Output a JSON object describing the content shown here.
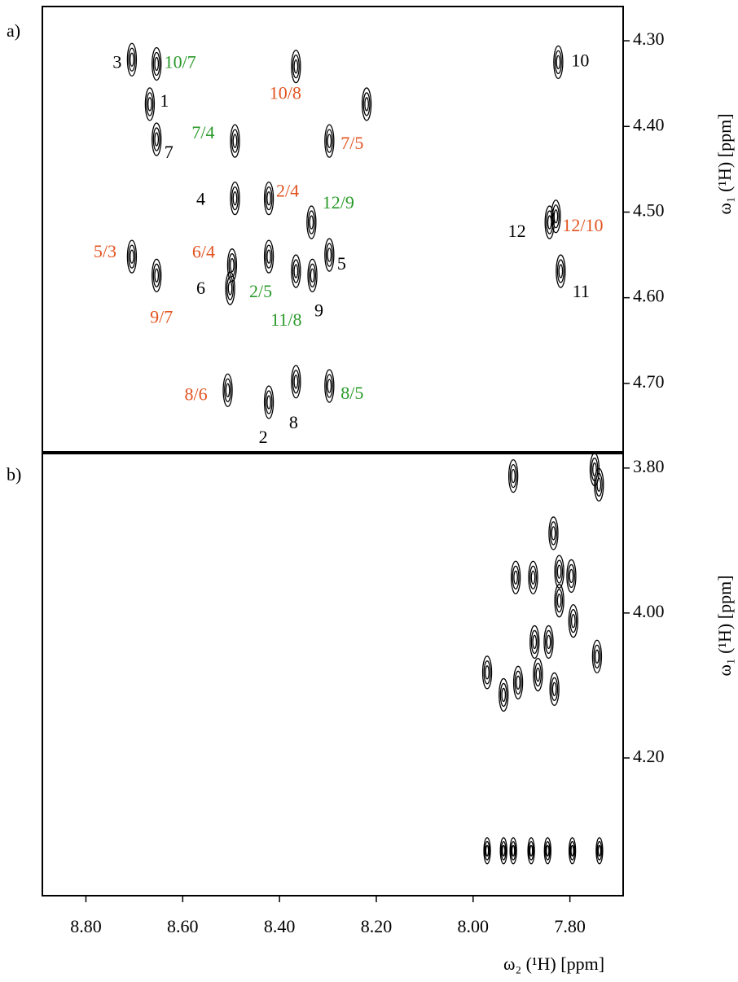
{
  "chart_data": [
    {
      "type": "scatter",
      "panel_label": "a)",
      "color": "#000000",
      "xlim": [
        8.89,
        7.69
      ],
      "ylim": [
        4.26,
        4.78
      ],
      "yticks": [
        {
          "value": 4.3,
          "label": "4.30"
        },
        {
          "value": 4.4,
          "label": "4.40"
        },
        {
          "value": 4.5,
          "label": "4.50"
        },
        {
          "value": 4.6,
          "label": "4.60"
        },
        {
          "value": 4.7,
          "label": "4.70"
        }
      ],
      "y_label": "ω₁ (¹H) [ppm]",
      "x": [
        8.705,
        8.654,
        8.668,
        8.654,
        8.492,
        8.366,
        8.297,
        8.22,
        8.492,
        8.422,
        8.334,
        8.705,
        8.654,
        8.498,
        8.502,
        8.422,
        8.366,
        8.332,
        8.297,
        7.824,
        7.842,
        7.819,
        7.829,
        8.507,
        8.422,
        8.366,
        8.297
      ],
      "y": [
        4.322,
        4.327,
        4.374,
        4.415,
        4.417,
        4.33,
        4.417,
        4.374,
        4.484,
        4.484,
        4.512,
        4.552,
        4.574,
        4.562,
        4.589,
        4.552,
        4.569,
        4.574,
        4.55,
        4.325,
        4.512,
        4.569,
        4.505,
        4.708,
        4.722,
        4.698,
        4.703
      ],
      "labels": [
        "3",
        "10/7",
        "1",
        "7",
        "7/4",
        "10/8",
        "7/5",
        null,
        "4",
        "2/4",
        "12/9",
        "5/3",
        "9/7",
        "6/4",
        "6",
        "2/5",
        "11/8",
        "9",
        "5",
        "10",
        "12",
        "11",
        "12/10",
        "8/6",
        "2",
        "8",
        "8/5"
      ],
      "label_colors": [
        "#000000",
        "#2a9a2a",
        "#000000",
        "#000000",
        "#2a9a2a",
        "#e2531f",
        "#e2531f",
        null,
        "#000000",
        "#e2531f",
        "#2a9a2a",
        "#e2531f",
        "#e2531f",
        "#e2531f",
        "#000000",
        "#2a9a2a",
        "#2a9a2a",
        "#000000",
        "#000000",
        "#000000",
        "#000000",
        "#000000",
        "#e2531f",
        "#e2531f",
        "#000000",
        "#000000",
        "#2a9a2a"
      ]
    },
    {
      "type": "scatter",
      "panel_label": "b)",
      "color": "#000000",
      "xlim": [
        8.89,
        7.69
      ],
      "ylim": [
        3.78,
        4.39
      ],
      "xticks": [
        {
          "value": 8.8,
          "label": "8.80"
        },
        {
          "value": 8.6,
          "label": "8.60"
        },
        {
          "value": 8.4,
          "label": "8.40"
        },
        {
          "value": 8.2,
          "label": "8.20"
        },
        {
          "value": 8.0,
          "label": "8.00"
        },
        {
          "value": 7.8,
          "label": "7.80"
        }
      ],
      "yticks": [
        {
          "value": 3.8,
          "label": "3.80"
        },
        {
          "value": 4.0,
          "label": "4.00"
        },
        {
          "value": 4.2,
          "label": "4.20"
        }
      ],
      "y_label": "ω₁ (¹H) [ppm]",
      "x_label": "ω₂ (¹H) [ppm]",
      "x": [
        7.917,
        7.749,
        7.74,
        7.834,
        7.876,
        7.912,
        7.822,
        7.797,
        7.793,
        7.822,
        7.873,
        7.844,
        7.971,
        7.937,
        7.907,
        7.866,
        7.832,
        7.744,
        7.971,
        7.937,
        7.917,
        7.88,
        7.846,
        7.795,
        7.739
      ],
      "y": [
        3.811,
        3.802,
        3.823,
        3.89,
        3.951,
        3.951,
        3.943,
        3.949,
        4.011,
        3.983,
        4.04,
        4.04,
        4.082,
        4.113,
        4.096,
        4.085,
        4.105,
        4.06,
        4.328,
        4.328,
        4.328,
        4.328,
        4.328,
        4.328,
        4.328
      ]
    }
  ]
}
